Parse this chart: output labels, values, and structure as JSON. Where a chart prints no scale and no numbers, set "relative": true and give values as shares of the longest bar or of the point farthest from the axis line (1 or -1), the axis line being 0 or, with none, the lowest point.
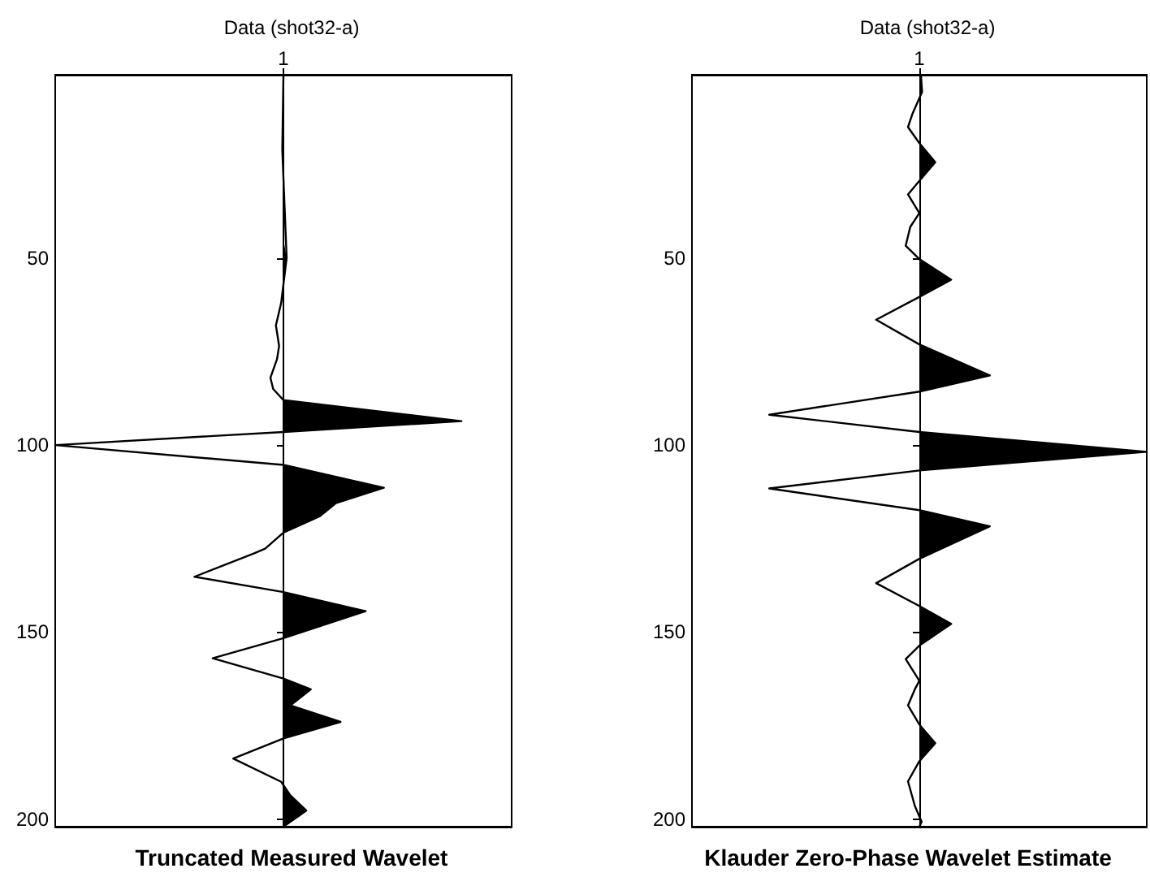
{
  "chart_data": [
    {
      "type": "line",
      "title": "Data (shot32-a)",
      "xlabel": "Truncated Measured Wavelet",
      "orientation": "horizontal",
      "relative": true,
      "ylim": [
        202,
        1
      ],
      "yticks": [
        50,
        100,
        150,
        200
      ],
      "grid": false,
      "legend": "top",
      "marker": "none",
      "line_style": "solid",
      "series": [
        {
          "name": "1",
          "color": "#000000",
          "x": [
            1,
            21,
            50,
            62,
            68,
            73.5,
            77,
            82,
            85,
            88,
            93.6,
            96.5,
            100,
            105.3,
            111.4,
            115.5,
            119,
            123.4,
            127.7,
            129,
            135.2,
            139.3,
            144.4,
            151.6,
            157,
            162.4,
            165.3,
            169.6,
            174,
            178.4,
            183.8,
            190,
            193.6,
            197.7,
            202
          ],
          "values": [
            0,
            -0.005,
            0.014,
            -0.01,
            -0.033,
            -0.019,
            -0.028,
            -0.057,
            -0.045,
            0,
            0.78,
            0,
            -1,
            0,
            0.44,
            0.23,
            0.16,
            0,
            -0.08,
            -0.13,
            -0.39,
            0,
            0.36,
            0,
            -0.31,
            0,
            0.12,
            0.03,
            0.25,
            0,
            -0.22,
            -0.01,
            0.03,
            0.1,
            0
          ]
        },
        {
          "type": "area",
          "color": "#000000",
          "x": [
            45,
            50,
            57,
            70,
            88,
            93.6,
            96.5,
            100,
            105.3,
            111.4,
            115.5,
            119,
            123.4,
            130,
            139.3,
            144.4,
            151.6,
            157,
            162.4,
            165.3,
            169.6,
            174,
            178.4,
            184,
            190.5,
            193.6,
            197.7,
            202
          ],
          "values": [
            0,
            0.014,
            0,
            null,
            0,
            0.78,
            0,
            null,
            0,
            0.44,
            0.23,
            0.16,
            0,
            null,
            0,
            0.36,
            0,
            null,
            0,
            0.12,
            0.03,
            0.25,
            0,
            null,
            0,
            0.03,
            0.1,
            0
          ]
        }
      ]
    },
    {
      "type": "line",
      "title": "Data (shot32-a)",
      "xlabel": "Klauder Zero-Phase Wavelet Estimate",
      "orientation": "horizontal",
      "relative": true,
      "ylim": [
        202,
        1
      ],
      "yticks": [
        50,
        100,
        150,
        200
      ],
      "grid": false,
      "legend": "top",
      "marker": "none",
      "line_style": "solid",
      "series": [
        {
          "name": "1",
          "color": "#000000",
          "x": [
            1,
            5.6,
            11.4,
            15,
            19.3,
            24.4,
            29.4,
            33,
            38,
            41.7,
            46.7,
            50.3,
            55.8,
            60.4,
            66.5,
            73.1,
            81.4,
            85.7,
            91.9,
            96.5,
            101.8,
            106.8,
            111.6,
            117.4,
            121.7,
            130.4,
            136.9,
            143,
            147.8,
            153.6,
            157.2,
            163,
            165.3,
            169.6,
            174.7,
            179.7,
            184.5,
            189.9,
            196.4,
            200.7,
            202
          ],
          "values": [
            0.007,
            0.012,
            -0.03,
            -0.05,
            0,
            0.07,
            0,
            -0.05,
            0,
            -0.04,
            -0.06,
            0,
            0.14,
            0,
            -0.19,
            0,
            0.31,
            0,
            -0.66,
            0,
            1,
            0,
            -0.66,
            0,
            0.31,
            0,
            -0.19,
            0,
            0.14,
            0,
            -0.06,
            0,
            -0.02,
            -0.05,
            0,
            0.07,
            0,
            -0.05,
            -0.02,
            0.01,
            0
          ]
        },
        {
          "type": "area",
          "color": "#000000",
          "x": [
            1,
            5.6,
            8,
            12,
            19.3,
            24.4,
            29.4,
            40,
            50.3,
            55.8,
            60.4,
            66.5,
            73.1,
            81.4,
            85.7,
            91.9,
            96.5,
            101.8,
            106.8,
            111.6,
            117.4,
            121.7,
            130.4,
            136.9,
            143,
            147.8,
            153.6,
            165,
            174.7,
            179.7,
            184.5
          ],
          "values": [
            0.007,
            0.012,
            0,
            null,
            0,
            0.07,
            0,
            null,
            0,
            0.14,
            0,
            null,
            0,
            0.31,
            0,
            null,
            0,
            1,
            0,
            null,
            0,
            0.31,
            0,
            null,
            0,
            0.14,
            0,
            null,
            0,
            0.07,
            0
          ]
        }
      ]
    }
  ]
}
